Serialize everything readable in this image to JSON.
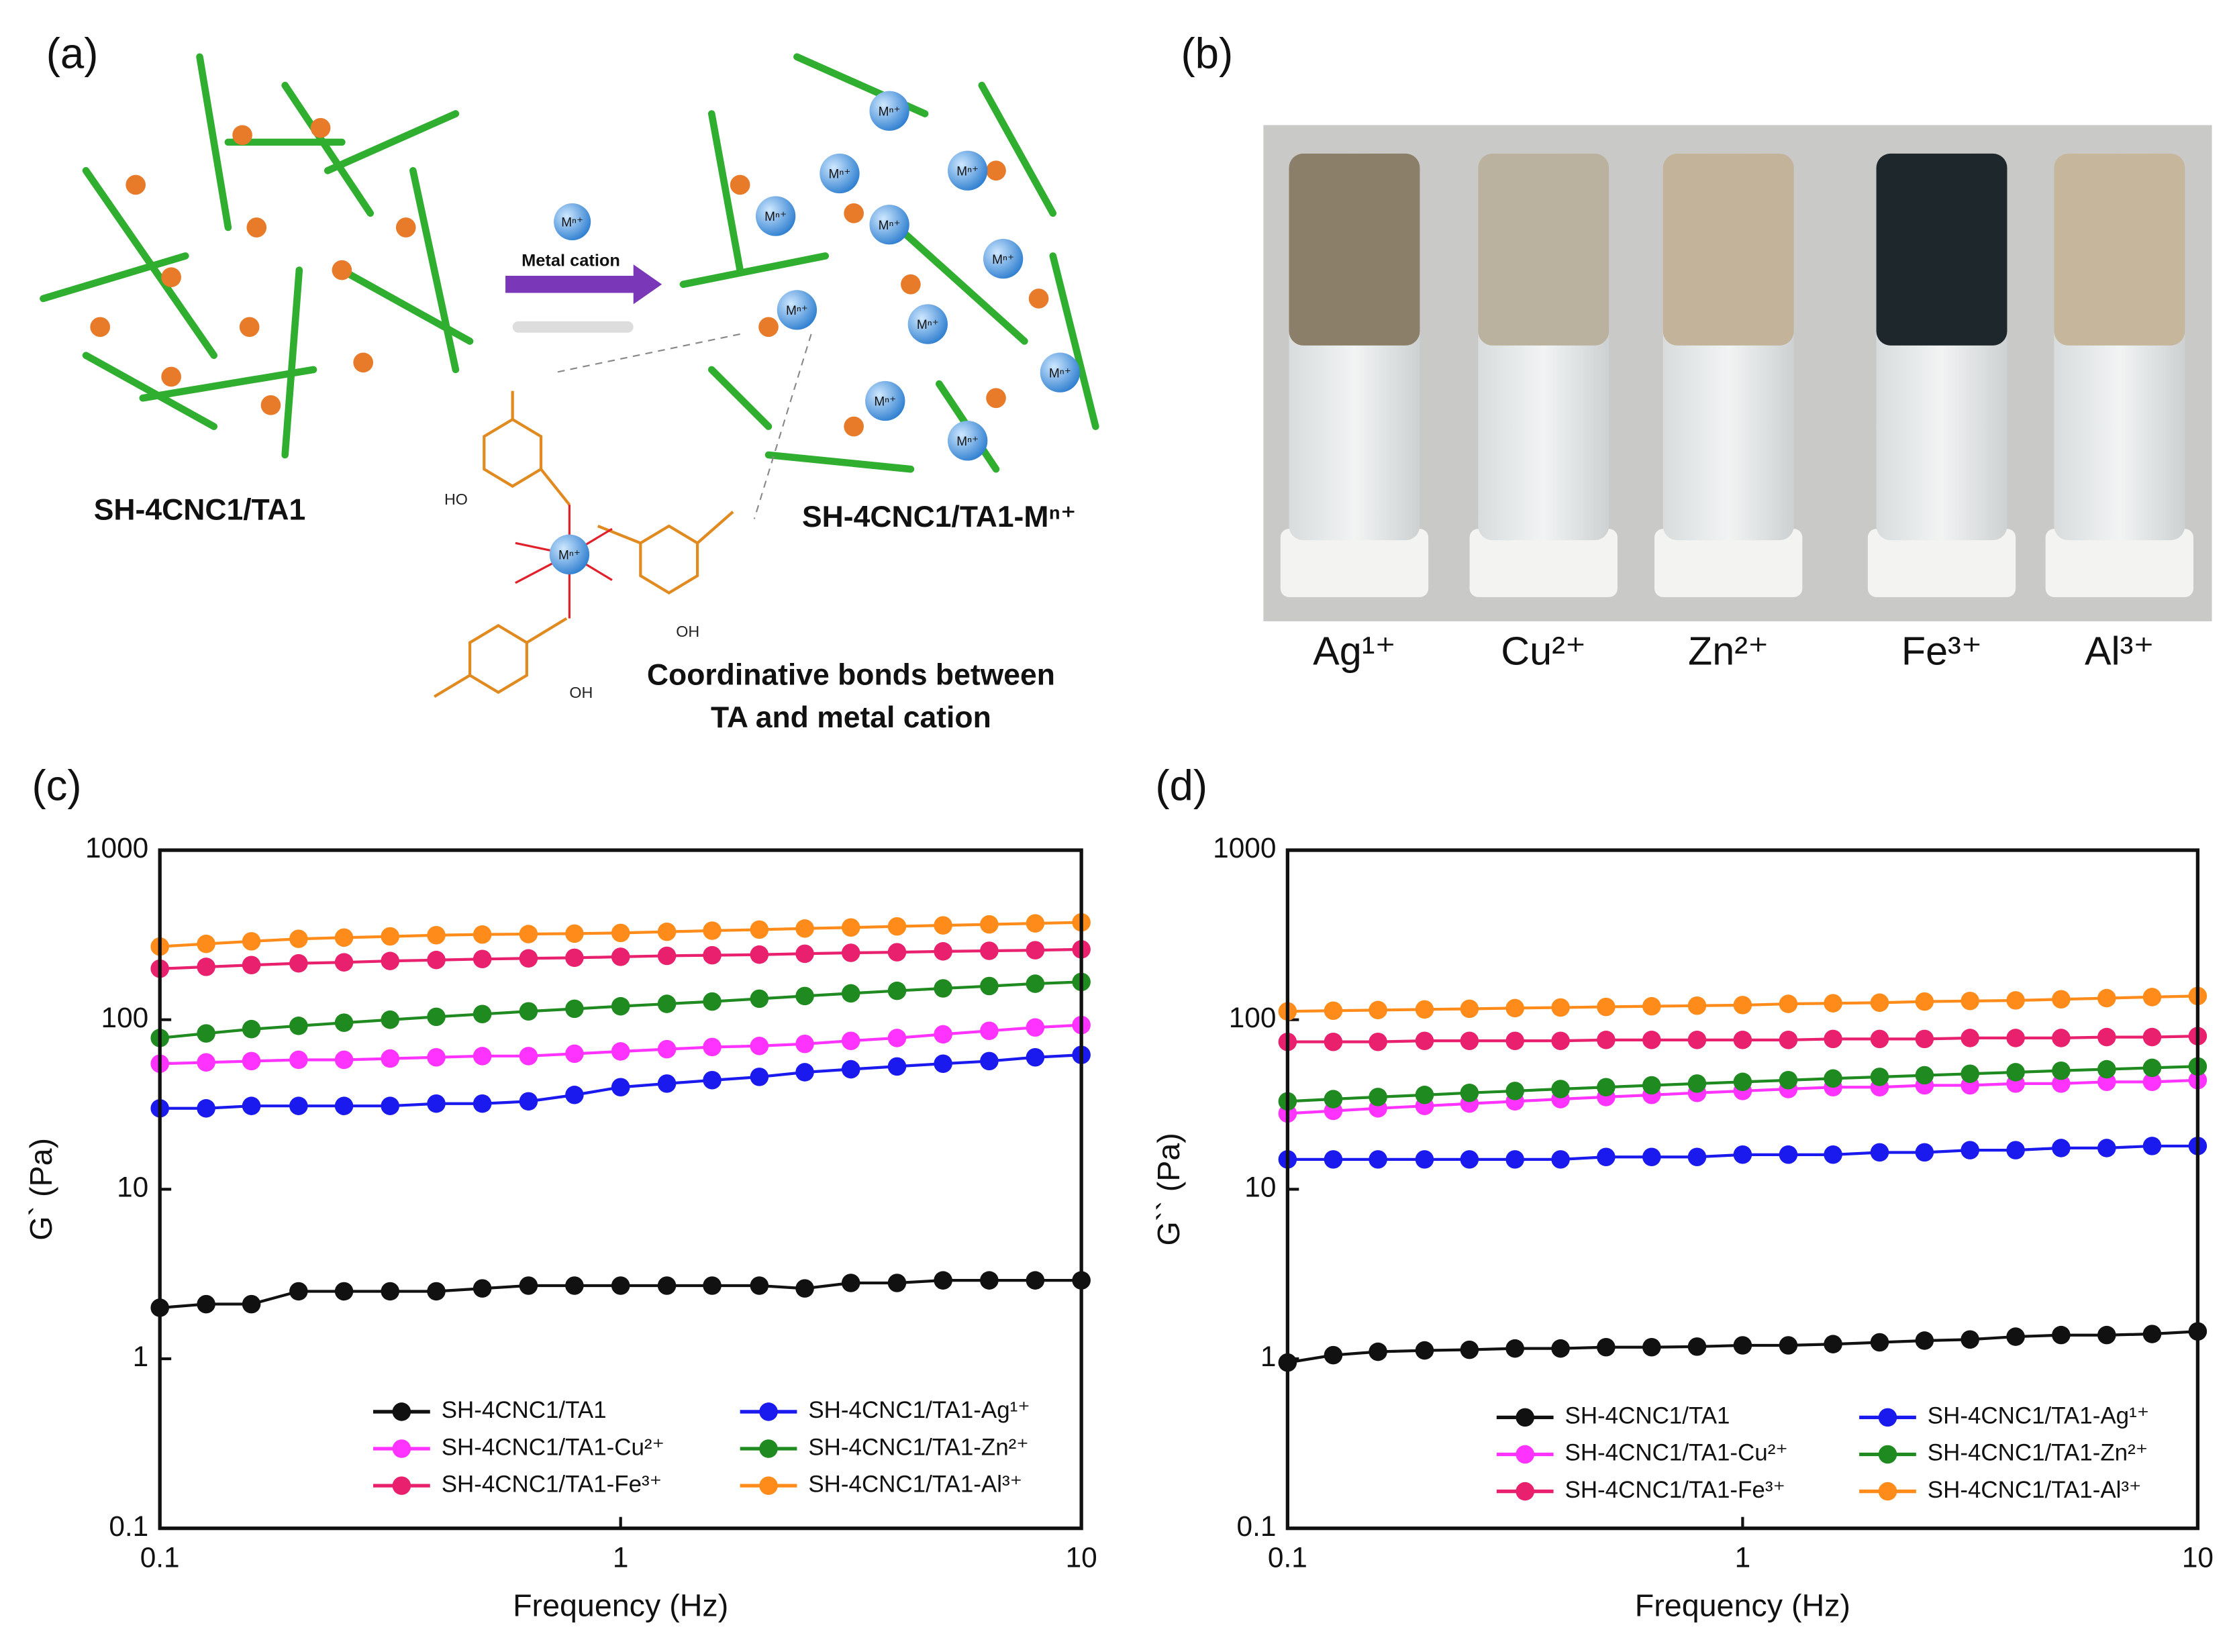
{
  "panel_a": {
    "label": "(a)",
    "left_caption": "SH-4CNC1/TA1",
    "right_caption": "SH-4CNC1/TA1-Mⁿ⁺",
    "arrow_label": "Metal cation",
    "ion": "Mⁿ⁺",
    "hydroxyl_left": "HO",
    "hydroxyl_right": "OH",
    "hydroxyl_bottom": "OH",
    "bond_caption": [
      "Coordinative bonds between",
      "TA and metal cation"
    ]
  },
  "panel_b": {
    "label": "(b)",
    "vials": [
      "Ag¹⁺",
      "Cu²⁺",
      "Zn²⁺",
      "Fe³⁺",
      "Al³⁺"
    ]
  },
  "chart_data": [
    {
      "type": "line",
      "panel_label": "(c)",
      "xlabel": "Frequency (Hz)",
      "ylabel": "G` (Pa)",
      "xscale": "log",
      "yscale": "log",
      "xlim": [
        0.1,
        10
      ],
      "ylim": [
        0.1,
        1000
      ],
      "xticks": [
        0.1,
        1,
        10
      ],
      "yticks": [
        0.1,
        1,
        10,
        100,
        1000
      ],
      "legend": "lower center",
      "x": [
        0.1,
        0.126,
        0.158,
        0.2,
        0.251,
        0.316,
        0.398,
        0.501,
        0.631,
        0.794,
        1,
        1.26,
        1.58,
        2,
        2.51,
        3.16,
        3.98,
        5.01,
        6.31,
        7.94,
        10
      ],
      "series": [
        {
          "name": "SH-4CNC1/TA1",
          "color": "#111111",
          "values": [
            2.0,
            2.1,
            2.1,
            2.5,
            2.5,
            2.5,
            2.5,
            2.6,
            2.7,
            2.7,
            2.7,
            2.7,
            2.7,
            2.7,
            2.6,
            2.8,
            2.8,
            2.9,
            2.9,
            2.9,
            2.9
          ]
        },
        {
          "name": "SH-4CNC1/TA1-Ag¹⁺",
          "color": "#1a1aee",
          "values": [
            30,
            30,
            31,
            31,
            31,
            31,
            32,
            32,
            33,
            36,
            40,
            42,
            44,
            46,
            49,
            51,
            53,
            55,
            57,
            60,
            62
          ]
        },
        {
          "name": "SH-4CNC1/TA1-Cu²⁺",
          "color": "#ff33ff",
          "values": [
            55,
            56,
            57,
            58,
            58,
            59,
            60,
            61,
            61,
            63,
            65,
            67,
            69,
            70,
            72,
            75,
            78,
            82,
            86,
            90,
            93
          ]
        },
        {
          "name": "SH-4CNC1/TA1-Zn²⁺",
          "color": "#1f8a1f",
          "values": [
            78,
            83,
            88,
            92,
            96,
            100,
            104,
            108,
            112,
            116,
            120,
            124,
            128,
            133,
            138,
            143,
            148,
            153,
            158,
            163,
            167
          ]
        },
        {
          "name": "SH-4CNC1/TA1-Fe³⁺",
          "color": "#e8206e",
          "values": [
            200,
            205,
            210,
            215,
            218,
            222,
            225,
            228,
            230,
            232,
            235,
            238,
            240,
            242,
            245,
            248,
            250,
            253,
            255,
            257,
            260
          ]
        },
        {
          "name": "SH-4CNC1/TA1-Al³⁺",
          "color": "#ff8c1a",
          "values": [
            270,
            280,
            290,
            300,
            305,
            310,
            315,
            318,
            320,
            322,
            325,
            330,
            335,
            340,
            345,
            350,
            355,
            360,
            365,
            370,
            375
          ]
        }
      ]
    },
    {
      "type": "line",
      "panel_label": "(d)",
      "xlabel": "Frequency (Hz)",
      "ylabel": "G`` (Pa)",
      "xscale": "log",
      "yscale": "log",
      "xlim": [
        0.1,
        10
      ],
      "ylim": [
        0.1,
        1000
      ],
      "xticks": [
        0.1,
        1,
        10
      ],
      "yticks": [
        0.1,
        1,
        10,
        100,
        1000
      ],
      "legend": "lower center",
      "x": [
        0.1,
        0.126,
        0.158,
        0.2,
        0.251,
        0.316,
        0.398,
        0.501,
        0.631,
        0.794,
        1,
        1.26,
        1.58,
        2,
        2.51,
        3.16,
        3.98,
        5.01,
        6.31,
        7.94,
        10
      ],
      "series": [
        {
          "name": "SH-4CNC1/TA1",
          "color": "#111111",
          "values": [
            0.95,
            1.05,
            1.1,
            1.12,
            1.13,
            1.15,
            1.15,
            1.17,
            1.17,
            1.18,
            1.2,
            1.2,
            1.22,
            1.25,
            1.28,
            1.3,
            1.35,
            1.38,
            1.38,
            1.4,
            1.45
          ]
        },
        {
          "name": "SH-4CNC1/TA1-Ag¹⁺",
          "color": "#1a1aee",
          "values": [
            15,
            15,
            15,
            15,
            15,
            15,
            15,
            15.5,
            15.5,
            15.5,
            16,
            16,
            16,
            16.5,
            16.5,
            17,
            17,
            17.5,
            17.5,
            18,
            18
          ]
        },
        {
          "name": "SH-4CNC1/TA1-Cu²⁺",
          "color": "#ff33ff",
          "values": [
            28,
            29,
            30,
            31,
            32,
            33,
            34,
            35,
            36,
            37,
            38,
            39,
            40,
            40,
            41,
            41,
            42,
            42,
            43,
            43,
            44
          ]
        },
        {
          "name": "SH-4CNC1/TA1-Zn²⁺",
          "color": "#1f8a1f",
          "values": [
            33,
            34,
            35,
            36,
            37,
            38,
            39,
            40,
            41,
            42,
            43,
            44,
            45,
            46,
            47,
            48,
            49,
            50,
            51,
            52,
            53
          ]
        },
        {
          "name": "SH-4CNC1/TA1-Fe³⁺",
          "color": "#e8206e",
          "values": [
            74,
            74,
            74,
            75,
            75,
            75,
            75,
            76,
            76,
            76,
            76,
            76,
            77,
            77,
            77,
            78,
            78,
            78,
            79,
            79,
            80
          ]
        },
        {
          "name": "SH-4CNC1/TA1-Al³⁺",
          "color": "#ff8c1a",
          "values": [
            112,
            113,
            114,
            115,
            116,
            117,
            118,
            119,
            120,
            121,
            122,
            124,
            125,
            126,
            128,
            129,
            130,
            132,
            134,
            136,
            138
          ]
        }
      ]
    }
  ]
}
